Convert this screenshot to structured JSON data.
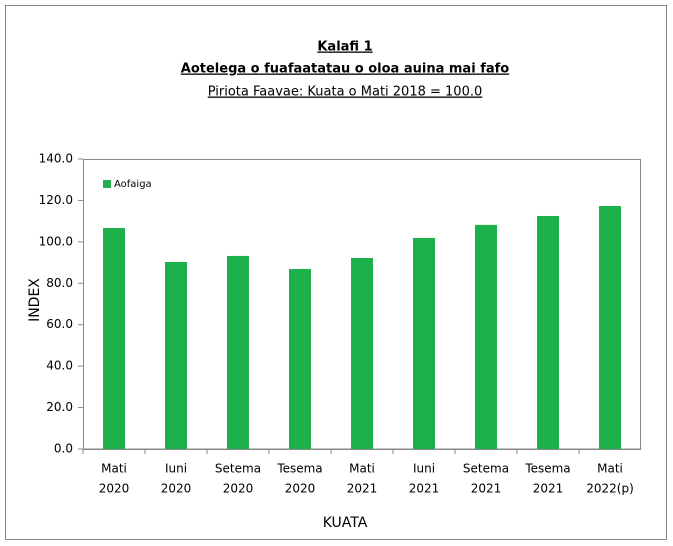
{
  "chart_data": {
    "type": "bar",
    "title": [
      "Kalafi 1",
      "Aotelega o fuafaatatau  o oloa auina  mai fafo"
    ],
    "subtitle": "Piriota Faavae: Kuata o Mati 2018 = 100.0",
    "xlabel": "KUATA",
    "ylabel": "INDEX",
    "categories": [
      [
        "Mati",
        "2020"
      ],
      [
        "Iuni",
        "2020"
      ],
      [
        "Setema",
        "2020"
      ],
      [
        "Tesema",
        "2020"
      ],
      [
        "Mati",
        "2021"
      ],
      [
        "Iuni",
        "2021"
      ],
      [
        "Setema",
        "2021"
      ],
      [
        "Tesema",
        "2021"
      ],
      [
        "Mati",
        "2022(p)"
      ]
    ],
    "series": [
      {
        "name": "Aofaiga",
        "color": "#1db04b",
        "values": [
          106.7,
          90.3,
          93.2,
          86.9,
          92.2,
          101.9,
          108.2,
          112.5,
          117.3
        ]
      }
    ],
    "ylim": [
      0,
      140
    ],
    "yticks": [
      {
        "value": 0,
        "label": "0.0"
      },
      {
        "value": 20,
        "label": "20.0"
      },
      {
        "value": 40,
        "label": "40.0"
      },
      {
        "value": 60,
        "label": "60.0"
      },
      {
        "value": 80,
        "label": "80.0"
      },
      {
        "value": 100,
        "label": "100.0"
      },
      {
        "value": 120,
        "label": "120.0"
      },
      {
        "value": 140,
        "label": "140.0"
      }
    ],
    "grid": false,
    "legend": "upper left"
  }
}
